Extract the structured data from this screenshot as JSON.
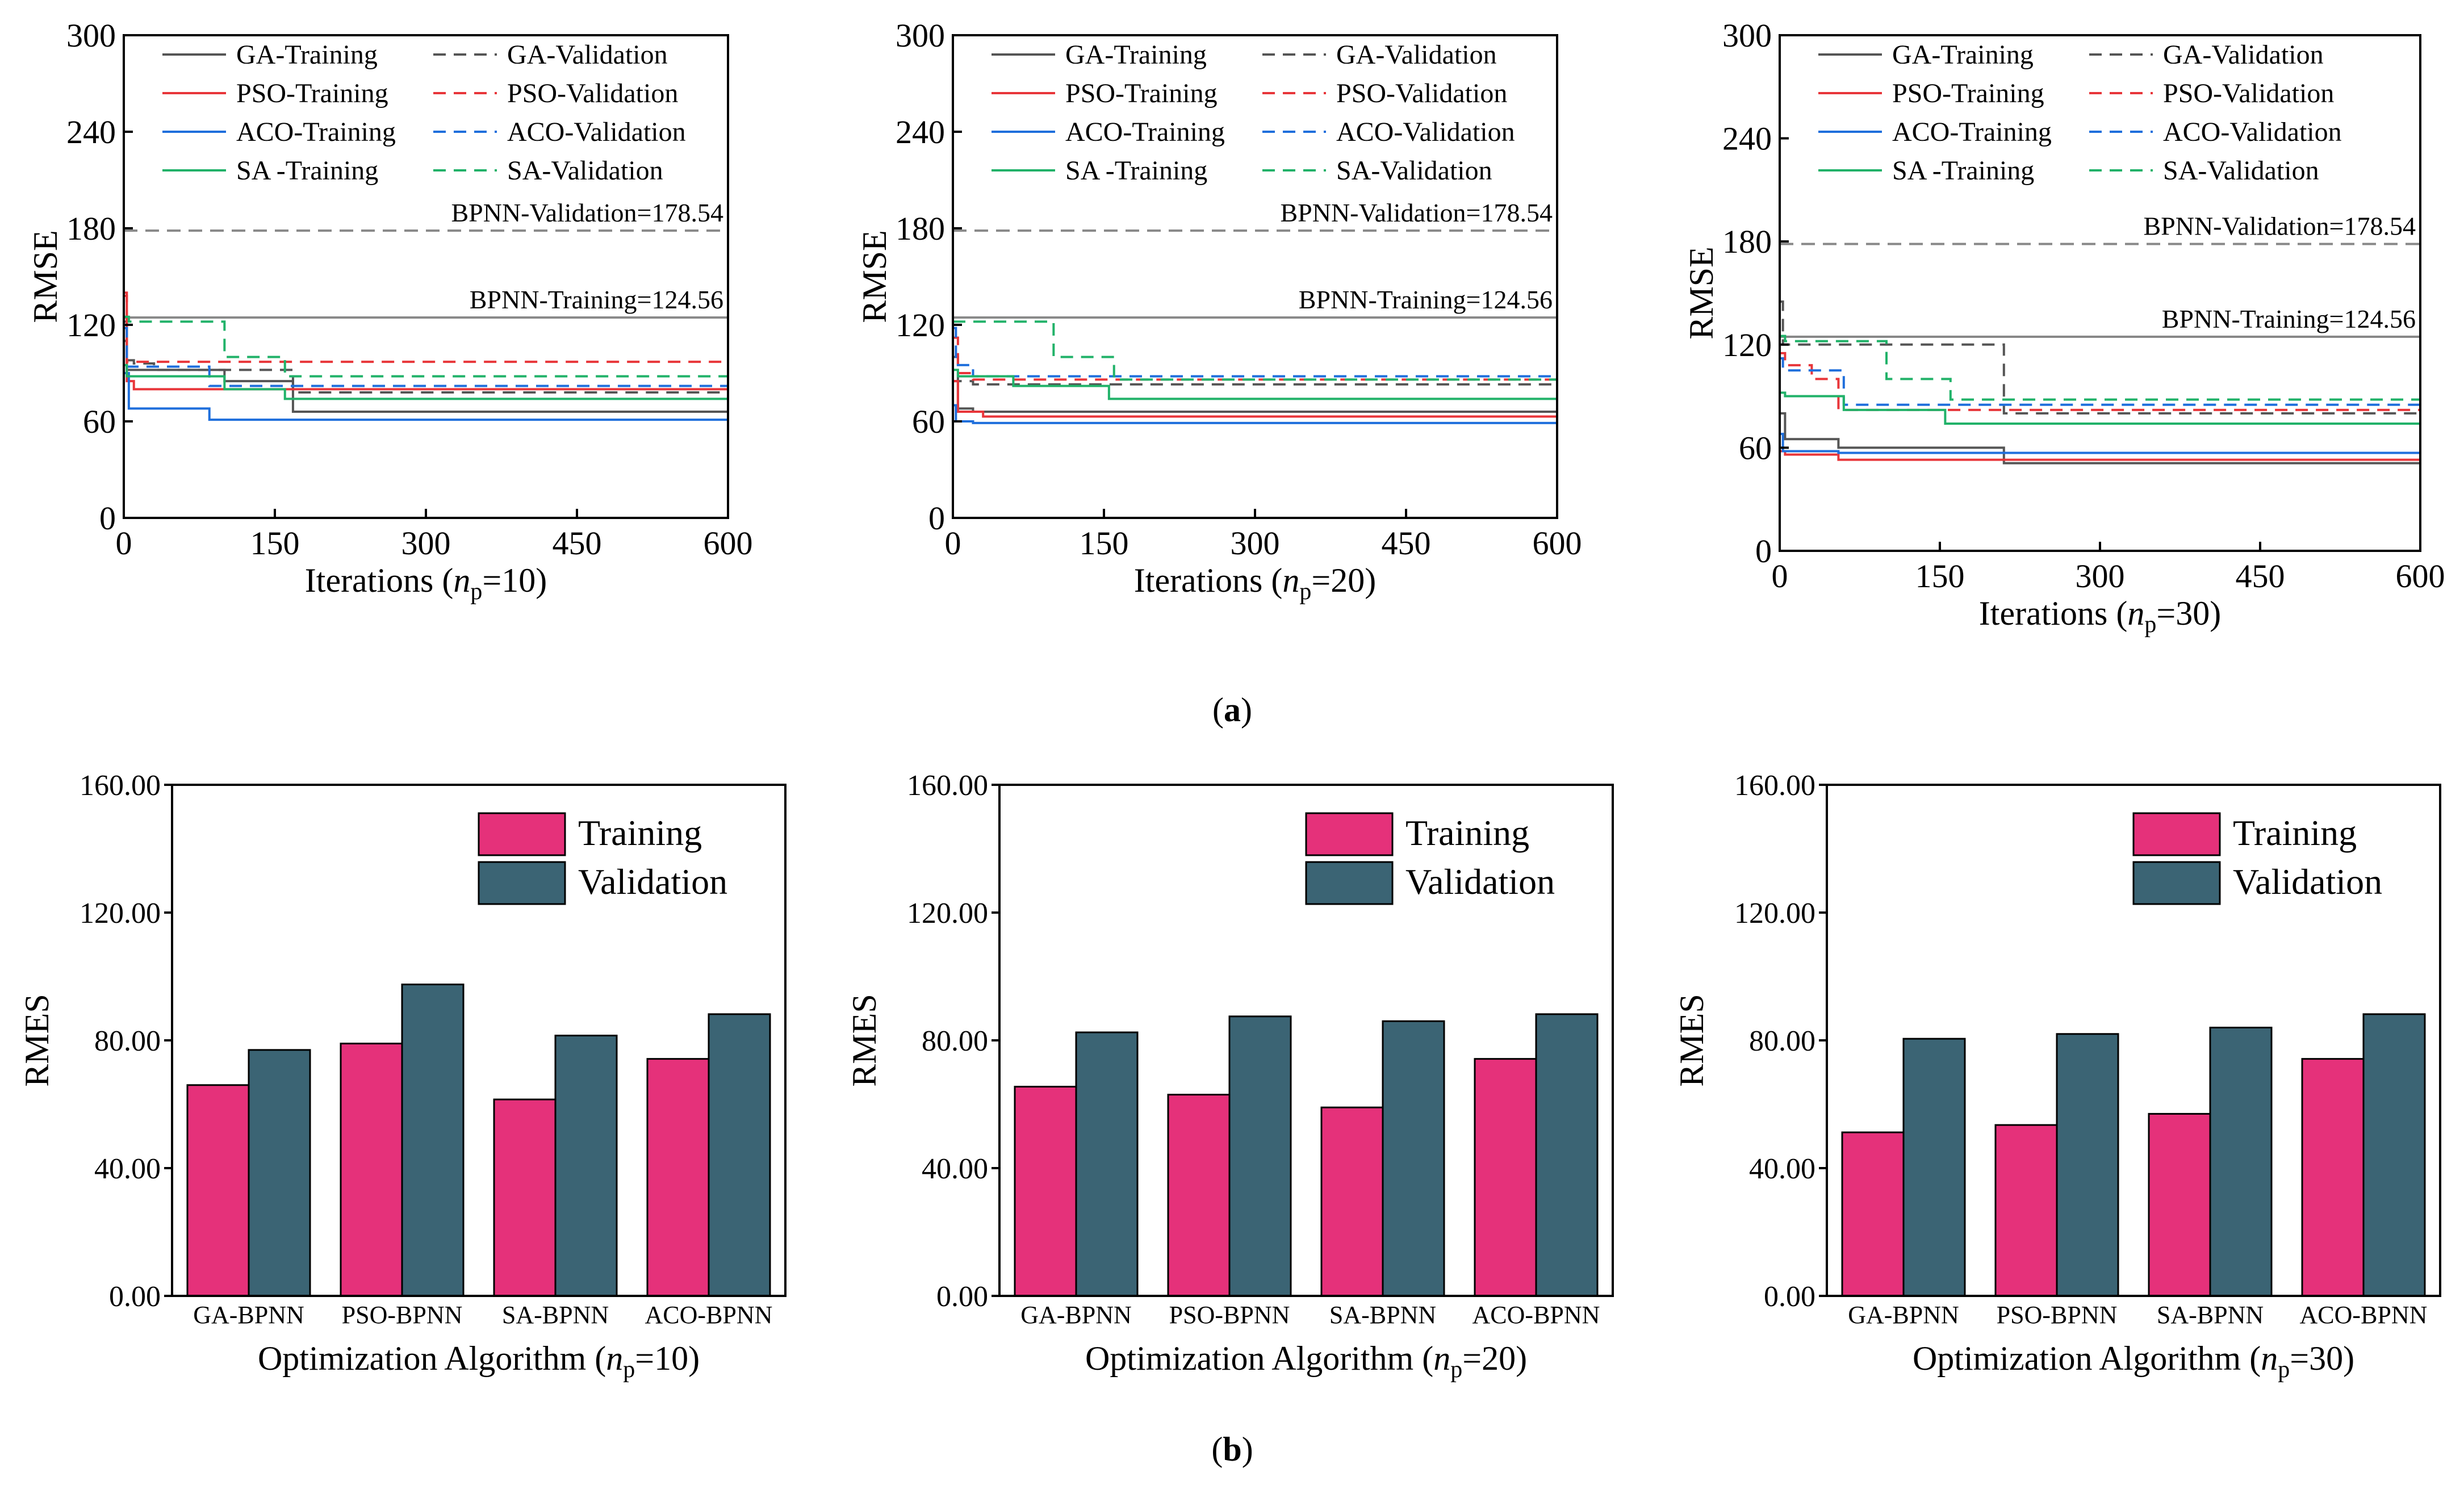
{
  "figure": {
    "label_a": "a",
    "label_b": "b"
  },
  "colors": {
    "ga": "#555555",
    "pso": "#e8363a",
    "aco": "#1f6fdc",
    "sa": "#21b269",
    "ref": "#888888",
    "training_bar": "#e5317a",
    "validation_bar": "#3b6474"
  },
  "chart_data": [
    {
      "type": "line",
      "id": "a1",
      "np": "10",
      "xlabel": "Iterations",
      "ylabel": "RMSE",
      "xlim": [
        0,
        600
      ],
      "ylim": [
        0,
        300
      ],
      "xticks": [
        "0",
        "150",
        "300",
        "450",
        "600"
      ],
      "yticks": [
        "0",
        "60",
        "120",
        "180",
        "240",
        "300"
      ],
      "legend": [
        "GA-Training",
        "GA-Validation",
        "PSO-Training",
        "PSO-Validation",
        "ACO-Training",
        "ACO-Validation",
        "SA -Training",
        "SA-Validation"
      ],
      "ref_lines": [
        {
          "label": "BPNN-Validation=178.54",
          "value": 178.54,
          "style": "dashed"
        },
        {
          "label": "BPNN-Training=124.56",
          "value": 124.56,
          "style": "solid"
        }
      ],
      "series": [
        {
          "name": "GA-Training",
          "algo": "ga",
          "dash": false,
          "x": [
            0,
            3,
            10,
            100,
            168,
            600
          ],
          "y": [
            110,
            92,
            92,
            85,
            66,
            66
          ]
        },
        {
          "name": "GA-Validation",
          "algo": "ga",
          "dash": true,
          "x": [
            0,
            3,
            10,
            30,
            168,
            600
          ],
          "y": [
            122,
            98,
            96,
            92,
            78,
            78
          ]
        },
        {
          "name": "PSO-Training",
          "algo": "pso",
          "dash": false,
          "x": [
            0,
            3,
            10,
            600
          ],
          "y": [
            138,
            85,
            80,
            80
          ]
        },
        {
          "name": "PSO-Validation",
          "algo": "pso",
          "dash": true,
          "x": [
            0,
            3,
            600
          ],
          "y": [
            140,
            97,
            97
          ]
        },
        {
          "name": "ACO-Training",
          "algo": "aco",
          "dash": false,
          "x": [
            0,
            5,
            85,
            600
          ],
          "y": [
            90,
            68,
            61,
            61
          ]
        },
        {
          "name": "ACO-Validation",
          "algo": "aco",
          "dash": true,
          "x": [
            0,
            3,
            85,
            600
          ],
          "y": [
            118,
            94,
            82,
            82
          ]
        },
        {
          "name": "SA -Training",
          "algo": "sa",
          "dash": false,
          "x": [
            0,
            3,
            100,
            160,
            600
          ],
          "y": [
            95,
            88,
            80,
            74,
            74
          ]
        },
        {
          "name": "SA-Validation",
          "algo": "sa",
          "dash": true,
          "x": [
            0,
            5,
            100,
            160,
            600
          ],
          "y": [
            125,
            122,
            100,
            88,
            88
          ]
        }
      ]
    },
    {
      "type": "line",
      "id": "a2",
      "np": "20",
      "xlabel": "Iterations",
      "ylabel": "RMSE",
      "xlim": [
        0,
        600
      ],
      "ylim": [
        0,
        300
      ],
      "xticks": [
        "0",
        "150",
        "300",
        "450",
        "600"
      ],
      "yticks": [
        "0",
        "60",
        "120",
        "180",
        "240",
        "300"
      ],
      "legend": [
        "GA-Training",
        "GA-Validation",
        "PSO-Training",
        "PSO-Validation",
        "ACO-Training",
        "ACO-Validation",
        "SA -Training",
        "SA-Validation"
      ],
      "ref_lines": [
        {
          "label": "BPNN-Validation=178.54",
          "value": 178.54,
          "style": "dashed"
        },
        {
          "label": "BPNN-Training=124.56",
          "value": 124.56,
          "style": "solid"
        }
      ],
      "series": [
        {
          "name": "GA-Training",
          "algo": "ga",
          "dash": false,
          "x": [
            0,
            5,
            20,
            600
          ],
          "y": [
            85,
            68,
            66,
            66
          ]
        },
        {
          "name": "GA-Validation",
          "algo": "ga",
          "dash": true,
          "x": [
            0,
            5,
            20,
            600
          ],
          "y": [
            100,
            85,
            83,
            83
          ]
        },
        {
          "name": "PSO-Training",
          "algo": "pso",
          "dash": false,
          "x": [
            0,
            5,
            30,
            600
          ],
          "y": [
            85,
            66,
            63,
            63
          ]
        },
        {
          "name": "PSO-Validation",
          "algo": "pso",
          "dash": true,
          "x": [
            0,
            5,
            20,
            600
          ],
          "y": [
            112,
            90,
            86,
            86
          ]
        },
        {
          "name": "ACO-Training",
          "algo": "aco",
          "dash": false,
          "x": [
            0,
            3,
            20,
            600
          ],
          "y": [
            70,
            60,
            59,
            59
          ]
        },
        {
          "name": "ACO-Validation",
          "algo": "aco",
          "dash": true,
          "x": [
            0,
            3,
            20,
            600
          ],
          "y": [
            118,
            95,
            88,
            88
          ]
        },
        {
          "name": "SA -Training",
          "algo": "sa",
          "dash": false,
          "x": [
            0,
            5,
            60,
            155,
            600
          ],
          "y": [
            92,
            88,
            82,
            74,
            74
          ]
        },
        {
          "name": "SA-Validation",
          "algo": "sa",
          "dash": true,
          "x": [
            0,
            5,
            100,
            160,
            600
          ],
          "y": [
            122,
            122,
            100,
            86,
            86
          ]
        }
      ]
    },
    {
      "type": "line",
      "id": "a3",
      "np": "30",
      "xlabel": "Iterations",
      "ylabel": "RMSE",
      "xlim": [
        0,
        600
      ],
      "ylim": [
        0,
        300
      ],
      "xticks": [
        "0",
        "150",
        "300",
        "450",
        "600"
      ],
      "yticks": [
        "0",
        "60",
        "120",
        "180",
        "240",
        "300"
      ],
      "legend": [
        "GA-Training",
        "GA-Validation",
        "PSO-Training",
        "PSO-Validation",
        "ACO-Training",
        "ACO-Validation",
        "SA -Training",
        "SA-Validation"
      ],
      "ref_lines": [
        {
          "label": "BPNN-Validation=178.54",
          "value": 178.54,
          "style": "dashed"
        },
        {
          "label": "BPNN-Training=124.56",
          "value": 124.56,
          "style": "solid"
        }
      ],
      "series": [
        {
          "name": "GA-Training",
          "algo": "ga",
          "dash": false,
          "x": [
            0,
            5,
            55,
            210,
            600
          ],
          "y": [
            80,
            65,
            60,
            51,
            51
          ]
        },
        {
          "name": "GA-Validation",
          "algo": "ga",
          "dash": true,
          "x": [
            0,
            3,
            210,
            600
          ],
          "y": [
            145,
            120,
            80,
            80
          ]
        },
        {
          "name": "PSO-Training",
          "algo": "pso",
          "dash": false,
          "x": [
            0,
            5,
            55,
            600
          ],
          "y": [
            58,
            56,
            53,
            53
          ]
        },
        {
          "name": "PSO-Validation",
          "algo": "pso",
          "dash": true,
          "x": [
            0,
            5,
            30,
            55,
            600
          ],
          "y": [
            115,
            108,
            100,
            82,
            82
          ]
        },
        {
          "name": "ACO-Training",
          "algo": "aco",
          "dash": false,
          "x": [
            0,
            3,
            55,
            600
          ],
          "y": [
            68,
            58,
            57,
            57
          ]
        },
        {
          "name": "ACO-Validation",
          "algo": "aco",
          "dash": true,
          "x": [
            0,
            3,
            60,
            600
          ],
          "y": [
            112,
            105,
            85,
            85
          ]
        },
        {
          "name": "SA -Training",
          "algo": "sa",
          "dash": false,
          "x": [
            0,
            5,
            60,
            155,
            600
          ],
          "y": [
            92,
            90,
            82,
            74,
            74
          ]
        },
        {
          "name": "SA-Validation",
          "algo": "sa",
          "dash": true,
          "x": [
            0,
            5,
            100,
            160,
            600
          ],
          "y": [
            125,
            122,
            100,
            88,
            88
          ]
        }
      ]
    },
    {
      "type": "bar",
      "id": "b1",
      "np": "10",
      "xlabel": "Optimization Algorithm",
      "ylabel": "RMES",
      "ylim": [
        0,
        160
      ],
      "yticks": [
        "0.00",
        "40.00",
        "80.00",
        "120.00",
        "160.00"
      ],
      "categories": [
        "GA-BPNN",
        "PSO-BPNN",
        "SA-BPNN",
        "ACO-BPNN"
      ],
      "series": [
        {
          "name": "Training",
          "key": "training_bar",
          "values": [
            66.0,
            79.0,
            61.5,
            74.2
          ]
        },
        {
          "name": "Validation",
          "key": "validation_bar",
          "values": [
            77.0,
            97.5,
            81.5,
            88.2
          ]
        }
      ]
    },
    {
      "type": "bar",
      "id": "b2",
      "np": "20",
      "xlabel": "Optimization Algorithm",
      "ylabel": "RMES",
      "ylim": [
        0,
        160
      ],
      "yticks": [
        "0.00",
        "40.00",
        "80.00",
        "120.00",
        "160.00"
      ],
      "categories": [
        "GA-BPNN",
        "PSO-BPNN",
        "SA-BPNN",
        "ACO-BPNN"
      ],
      "series": [
        {
          "name": "Training",
          "key": "training_bar",
          "values": [
            65.5,
            63.0,
            59.0,
            74.2
          ]
        },
        {
          "name": "Validation",
          "key": "validation_bar",
          "values": [
            82.5,
            87.5,
            86.0,
            88.2
          ]
        }
      ]
    },
    {
      "type": "bar",
      "id": "b3",
      "np": "30",
      "xlabel": "Optimization Algorithm",
      "ylabel": "RMES",
      "ylim": [
        0,
        160
      ],
      "yticks": [
        "0.00",
        "40.00",
        "80.00",
        "120.00",
        "160.00"
      ],
      "categories": [
        "GA-BPNN",
        "PSO-BPNN",
        "SA-BPNN",
        "ACO-BPNN"
      ],
      "series": [
        {
          "name": "Training",
          "key": "training_bar",
          "values": [
            51.2,
            53.5,
            57.0,
            74.2
          ]
        },
        {
          "name": "Validation",
          "key": "validation_bar",
          "values": [
            80.5,
            82.0,
            84.0,
            88.2
          ]
        }
      ]
    }
  ]
}
